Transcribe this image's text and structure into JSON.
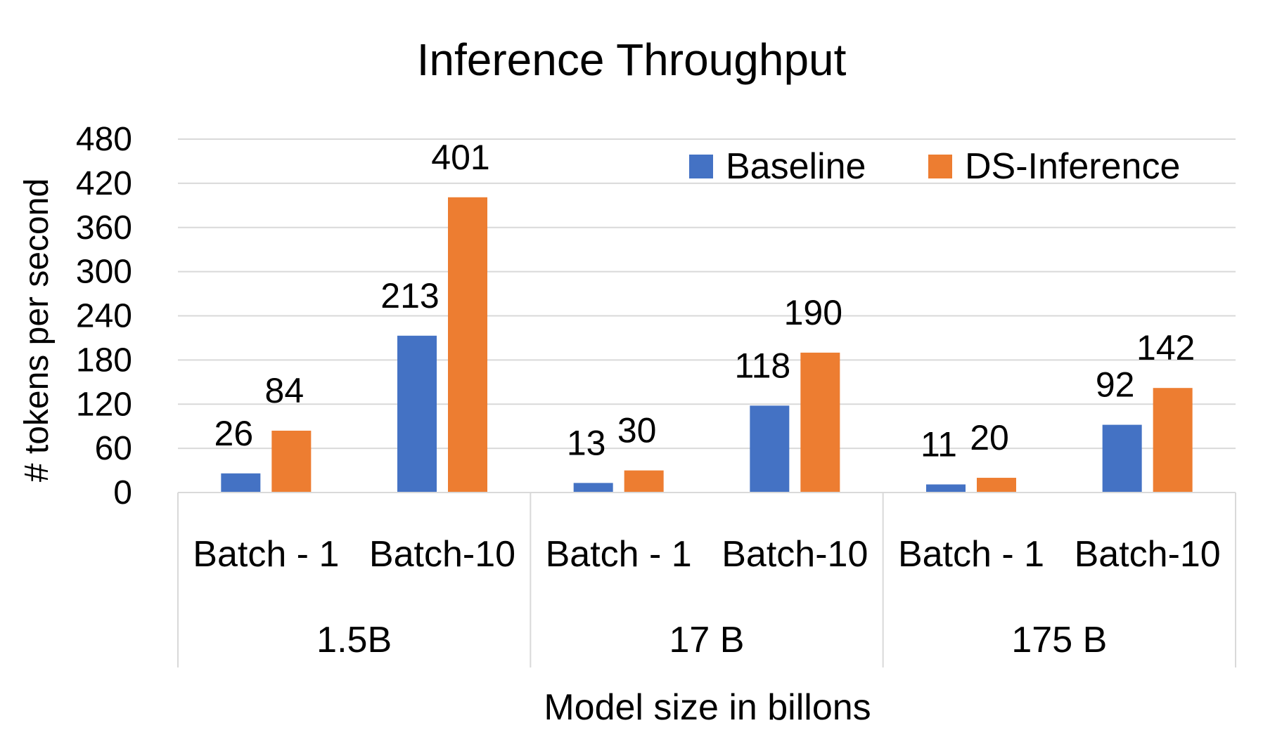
{
  "chart_data": {
    "type": "bar",
    "title": "Inference Throughput",
    "xlabel": "Model size in billons",
    "ylabel": "# tokens per second",
    "ylim": [
      0,
      480
    ],
    "yticks": [
      0,
      60,
      120,
      180,
      240,
      300,
      360,
      420,
      480
    ],
    "grid": true,
    "legend_position": "top-right",
    "groups": [
      {
        "label": "1.5B",
        "categories": [
          "Batch - 1",
          "Batch-10"
        ]
      },
      {
        "label": "17 B",
        "categories": [
          "Batch - 1",
          "Batch-10"
        ]
      },
      {
        "label": "175 B",
        "categories": [
          "Batch - 1",
          "Batch-10"
        ]
      }
    ],
    "series": [
      {
        "name": "Baseline",
        "color": "#4472C4",
        "values": [
          26,
          213,
          13,
          118,
          11,
          92
        ]
      },
      {
        "name": "DS-Inference",
        "color": "#ED7D31",
        "values": [
          84,
          401,
          30,
          190,
          20,
          142
        ]
      }
    ]
  }
}
